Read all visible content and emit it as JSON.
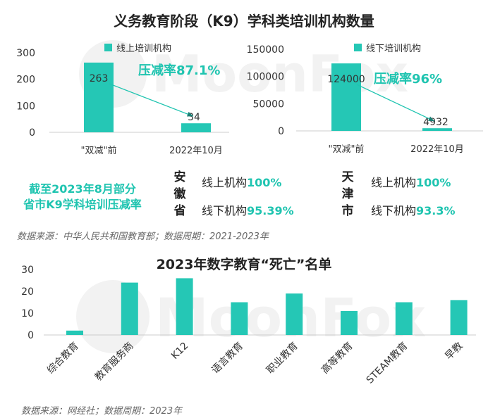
{
  "top": {
    "title": "义务教育阶段（K9）学科类培训机构数量",
    "online": {
      "legend": "线上培训机构",
      "reduction": "压减率87.1%",
      "chart_data": {
        "type": "bar",
        "categories": [
          "\"双减\"前",
          "2022年10月"
        ],
        "series": [
          {
            "name": "线上培训机构",
            "values": [
              263,
              34
            ]
          }
        ],
        "ylim": [
          0,
          300
        ],
        "yticks": [
          0,
          100,
          200,
          300
        ],
        "data_labels": [
          "263",
          "34"
        ]
      }
    },
    "offline": {
      "legend": "线下培训机构",
      "reduction": "压减率96%",
      "chart_data": {
        "type": "bar",
        "categories": [
          "\"双减\"前",
          "2022年10月"
        ],
        "series": [
          {
            "name": "线下培训机构",
            "values": [
              124000,
              4932
            ]
          }
        ],
        "ylim": [
          0,
          150000
        ],
        "yticks": [
          0,
          50000,
          100000,
          150000
        ],
        "data_labels": [
          "124000",
          "4932"
        ]
      }
    }
  },
  "province": {
    "caption_line1": "截至2023年8月部分",
    "caption_line2": "省市K9学科培训压减率",
    "anhui": {
      "name_chars": [
        "安",
        "徽",
        "省"
      ],
      "online_label": "线上机构",
      "online_pct": "100%",
      "offline_label": "线下机构",
      "offline_pct": "95.39%"
    },
    "tianjin": {
      "name_chars": [
        "天",
        "津",
        "市"
      ],
      "online_label": "线上机构",
      "online_pct": "100%",
      "offline_label": "线下机构",
      "offline_pct": "93.3%"
    }
  },
  "source1": "数据来源：中华人民共和国教育部；数据周期：2021-2023年",
  "bottom": {
    "title": "2023年数字教育“死亡”名单",
    "chart_data": {
      "type": "bar",
      "categories": [
        "综合教育",
        "教育服务商",
        "K12",
        "语言教育",
        "职业教育",
        "高等教育",
        "STEAM教育",
        "早教"
      ],
      "values": [
        2,
        24,
        26,
        15,
        19,
        11,
        15,
        16
      ],
      "ylim": [
        0,
        30
      ],
      "yticks": [
        0,
        10,
        20,
        30
      ]
    }
  },
  "source2": "数据来源：网经社；数据周期：2023年",
  "watermark": "MoonFox",
  "colors": {
    "bar": "#25c7b5",
    "accent": "#1fc4b0",
    "axis": "#cccccc"
  }
}
